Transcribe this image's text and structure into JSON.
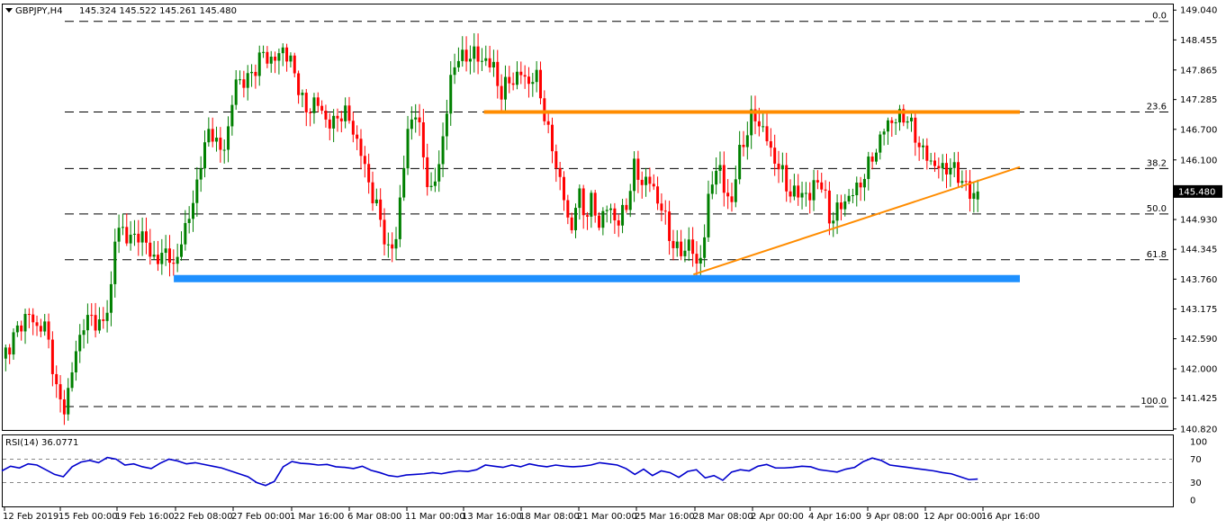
{
  "window": {
    "symbol_title": "GBPJPY,H4",
    "ohlc": "145.324 145.522 145.261 145.480"
  },
  "chart_data": {
    "type": "candlestick",
    "symbol": "GBPJPY",
    "timeframe": "H4",
    "last_price": 145.48,
    "ohlc_last": {
      "open": 145.324,
      "high": 145.522,
      "low": 145.261,
      "close": 145.48
    },
    "price_axis": {
      "ylim": [
        140.8,
        149.15
      ],
      "tick_labels": [
        "149.040",
        "148.455",
        "147.865",
        "147.285",
        "146.700",
        "146.100",
        "145.480",
        "144.930",
        "144.345",
        "143.760",
        "143.175",
        "142.590",
        "142.000",
        "141.425",
        "140.820"
      ]
    },
    "time_axis": {
      "tick_labels": [
        "12 Feb 2019",
        "15 Feb 00:00",
        "19 Feb 16:00",
        "22 Feb 08:00",
        "27 Feb 00:00",
        "1 Mar 16:00",
        "6 Mar 08:00",
        "11 Mar 00:00",
        "13 Mar 16:00",
        "18 Mar 08:00",
        "21 Mar 00:00",
        "25 Mar 16:00",
        "28 Mar 08:00",
        "2 Apr 00:00",
        "4 Apr 16:00",
        "9 Apr 08:00",
        "12 Apr 00:00",
        "16 Apr 16:00"
      ]
    },
    "fibonacci": [
      {
        "level": "0.0",
        "price": 148.82
      },
      {
        "level": "23.6",
        "price": 147.04
      },
      {
        "level": "38.2",
        "price": 145.93
      },
      {
        "level": "50.0",
        "price": 145.04
      },
      {
        "level": "61.8",
        "price": 144.14
      },
      {
        "level": "100.0",
        "price": 141.26
      }
    ],
    "horizontal_lines": [
      {
        "name": "resistance",
        "price": 147.04,
        "color": "#ff8c00",
        "from": 0.412,
        "to": 0.87
      },
      {
        "name": "support",
        "price": 143.77,
        "color": "#1e90ff",
        "from": 0.147,
        "to": 0.87
      }
    ],
    "trendline": {
      "color": "#ff8c00",
      "from": {
        "x": 0.591,
        "price": 143.85
      },
      "to": {
        "x": 0.87,
        "price": 145.96
      }
    },
    "candles_path": [
      [
        0,
        142.2
      ],
      [
        0.012,
        142.7
      ],
      [
        0.022,
        143.1
      ],
      [
        0.03,
        142.8
      ],
      [
        0.036,
        142.9
      ],
      [
        0.042,
        142.3
      ],
      [
        0.048,
        141.4
      ],
      [
        0.053,
        141.2
      ],
      [
        0.058,
        141.7
      ],
      [
        0.064,
        142.4
      ],
      [
        0.07,
        142.9
      ],
      [
        0.078,
        143.0
      ],
      [
        0.086,
        142.8
      ],
      [
        0.093,
        143.5
      ],
      [
        0.097,
        144.6
      ],
      [
        0.102,
        144.8
      ],
      [
        0.11,
        144.5
      ],
      [
        0.118,
        144.7
      ],
      [
        0.126,
        144.3
      ],
      [
        0.134,
        144.1
      ],
      [
        0.142,
        144.4
      ],
      [
        0.148,
        143.8
      ],
      [
        0.153,
        144.6
      ],
      [
        0.16,
        144.9
      ],
      [
        0.166,
        145.6
      ],
      [
        0.172,
        146.2
      ],
      [
        0.178,
        146.8
      ],
      [
        0.186,
        146.2
      ],
      [
        0.194,
        146.7
      ],
      [
        0.2,
        147.7
      ],
      [
        0.208,
        147.6
      ],
      [
        0.216,
        147.9
      ],
      [
        0.224,
        148.2
      ],
      [
        0.232,
        148.0
      ],
      [
        0.24,
        148.3
      ],
      [
        0.247,
        148.0
      ],
      [
        0.253,
        147.6
      ],
      [
        0.26,
        147.0
      ],
      [
        0.268,
        147.3
      ],
      [
        0.276,
        146.9
      ],
      [
        0.284,
        146.8
      ],
      [
        0.292,
        147.1
      ],
      [
        0.3,
        146.7
      ],
      [
        0.306,
        146.3
      ],
      [
        0.312,
        145.8
      ],
      [
        0.318,
        145.3
      ],
      [
        0.324,
        144.9
      ],
      [
        0.33,
        144.3
      ],
      [
        0.336,
        144.4
      ],
      [
        0.342,
        145.7
      ],
      [
        0.348,
        146.8
      ],
      [
        0.354,
        147.1
      ],
      [
        0.36,
        146.2
      ],
      [
        0.366,
        145.4
      ],
      [
        0.372,
        145.8
      ],
      [
        0.378,
        146.7
      ],
      [
        0.384,
        147.7
      ],
      [
        0.39,
        148.2
      ],
      [
        0.396,
        148.0
      ],
      [
        0.402,
        148.3
      ],
      [
        0.408,
        148.0
      ],
      [
        0.414,
        148.1
      ],
      [
        0.42,
        147.9
      ],
      [
        0.426,
        147.4
      ],
      [
        0.432,
        147.6
      ],
      [
        0.438,
        147.7
      ],
      [
        0.444,
        147.8
      ],
      [
        0.45,
        147.6
      ],
      [
        0.456,
        147.8
      ],
      [
        0.462,
        147.2
      ],
      [
        0.468,
        146.5
      ],
      [
        0.474,
        146.0
      ],
      [
        0.48,
        145.4
      ],
      [
        0.486,
        144.6
      ],
      [
        0.492,
        145.5
      ],
      [
        0.498,
        145.0
      ],
      [
        0.504,
        145.3
      ],
      [
        0.51,
        144.8
      ],
      [
        0.516,
        145.2
      ],
      [
        0.522,
        145.0
      ],
      [
        0.528,
        144.9
      ],
      [
        0.534,
        145.2
      ],
      [
        0.54,
        146.0
      ],
      [
        0.546,
        145.6
      ],
      [
        0.552,
        145.8
      ],
      [
        0.558,
        145.4
      ],
      [
        0.564,
        145.2
      ],
      [
        0.57,
        144.6
      ],
      [
        0.576,
        144.4
      ],
      [
        0.582,
        144.2
      ],
      [
        0.588,
        144.6
      ],
      [
        0.594,
        143.9
      ],
      [
        0.6,
        144.6
      ],
      [
        0.606,
        145.6
      ],
      [
        0.612,
        146.1
      ],
      [
        0.618,
        145.4
      ],
      [
        0.624,
        145.3
      ],
      [
        0.63,
        146.2
      ],
      [
        0.636,
        146.6
      ],
      [
        0.642,
        147.0
      ],
      [
        0.648,
        146.8
      ],
      [
        0.654,
        146.5
      ],
      [
        0.66,
        146.1
      ],
      [
        0.666,
        145.9
      ],
      [
        0.672,
        145.5
      ],
      [
        0.678,
        145.4
      ],
      [
        0.684,
        145.5
      ],
      [
        0.69,
        145.3
      ],
      [
        0.696,
        145.8
      ],
      [
        0.702,
        145.5
      ],
      [
        0.708,
        144.9
      ],
      [
        0.714,
        145.1
      ],
      [
        0.72,
        145.3
      ],
      [
        0.726,
        145.4
      ],
      [
        0.732,
        145.6
      ],
      [
        0.738,
        145.8
      ],
      [
        0.744,
        146.2
      ],
      [
        0.75,
        146.4
      ],
      [
        0.756,
        146.9
      ],
      [
        0.762,
        146.8
      ],
      [
        0.768,
        147.0
      ],
      [
        0.774,
        146.9
      ],
      [
        0.78,
        146.6
      ],
      [
        0.786,
        146.3
      ],
      [
        0.792,
        146.1
      ],
      [
        0.798,
        146.0
      ],
      [
        0.804,
        145.9
      ],
      [
        0.81,
        146.0
      ],
      [
        0.816,
        145.8
      ],
      [
        0.822,
        145.7
      ],
      [
        0.828,
        145.35
      ],
      [
        0.834,
        145.48
      ]
    ]
  },
  "rsi": {
    "label": "RSI(14) 36.0771",
    "levels": [
      {
        "label": "100",
        "value": 100
      },
      {
        "label": "70",
        "value": 70
      },
      {
        "label": "30",
        "value": 30
      },
      {
        "label": "0",
        "value": 0
      }
    ],
    "line_color": "#0000cd",
    "values": [
      50,
      58,
      55,
      62,
      60,
      52,
      44,
      40,
      57,
      65,
      68,
      64,
      73,
      70,
      60,
      62,
      57,
      54,
      63,
      70,
      67,
      62,
      64,
      61,
      58,
      55,
      50,
      45,
      40,
      30,
      25,
      32,
      57,
      66,
      63,
      62,
      60,
      61,
      57,
      56,
      54,
      58,
      51,
      47,
      42,
      40,
      43,
      44,
      45,
      47,
      45,
      48,
      50,
      49,
      52,
      60,
      58,
      56,
      60,
      57,
      62,
      59,
      57,
      60,
      58,
      57,
      58,
      60,
      64,
      62,
      60,
      54,
      44,
      53,
      42,
      50,
      47,
      39,
      49,
      52,
      38,
      42,
      34,
      48,
      52,
      50,
      58,
      61,
      55,
      55,
      56,
      58,
      57,
      52,
      50,
      48,
      53,
      56,
      66,
      72,
      68,
      60,
      58,
      56,
      54,
      52,
      50,
      47,
      45,
      40,
      35,
      36.08
    ]
  },
  "colors": {
    "bull": "#008000",
    "bear": "#ff0000",
    "grid_dash": "#000000",
    "price_box": "#000000"
  }
}
